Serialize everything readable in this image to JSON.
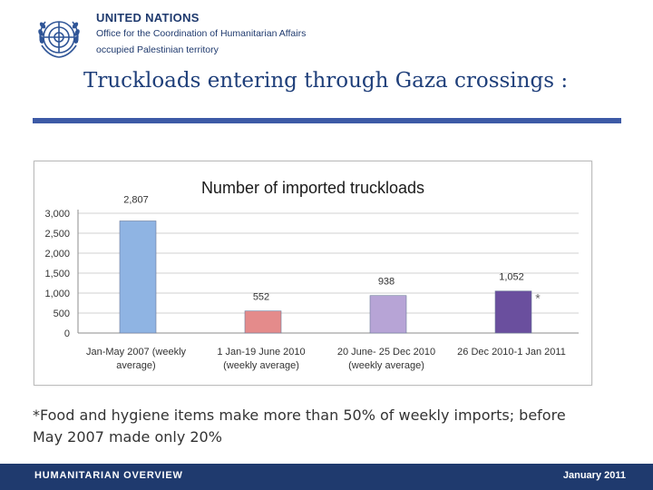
{
  "header": {
    "org_name": "UNITED NATIONS",
    "office": "Office for the Coordination of Humanitarian Affairs",
    "territory": "occupied Palestinian territory",
    "logo_icon": "un-emblem-icon"
  },
  "slide_title": "Truckloads entering through Gaza crossings :",
  "footnote": "*Food and hygiene items make more than 50% of weekly imports; before May 2007 made only 20%",
  "footer": {
    "left": "HUMANITARIAN OVERVIEW",
    "right": "January 2011"
  },
  "colors": {
    "brand_blue": "#1f3a6e",
    "title_blue": "#1f3f7a",
    "rule_blue": "#3d5aa6"
  },
  "chart_data": {
    "type": "bar",
    "title": "Number of imported truckloads",
    "xlabel": "",
    "ylabel": "",
    "ylim": [
      0,
      3000
    ],
    "yticks": [
      "0",
      "500",
      "1,000",
      "1,500",
      "2,000",
      "2,500",
      "3,000"
    ],
    "ytick_values": [
      0,
      500,
      1000,
      1500,
      2000,
      2500,
      3000
    ],
    "grid": true,
    "categories": [
      [
        "Jan-May 2007 (weekly",
        "average)"
      ],
      [
        "1 Jan-19 June 2010",
        "(weekly average)"
      ],
      [
        "20 June- 25 Dec 2010",
        "(weekly average)"
      ],
      [
        "26 Dec 2010-1 Jan 2011"
      ]
    ],
    "values": [
      2807,
      552,
      938,
      1052
    ],
    "data_labels": [
      "2,807",
      "552",
      "938",
      "1,052"
    ],
    "bar_colors": [
      "#8fb4e3",
      "#e48b8b",
      "#b7a4d6",
      "#6a4f9e"
    ],
    "annotation": "*"
  }
}
